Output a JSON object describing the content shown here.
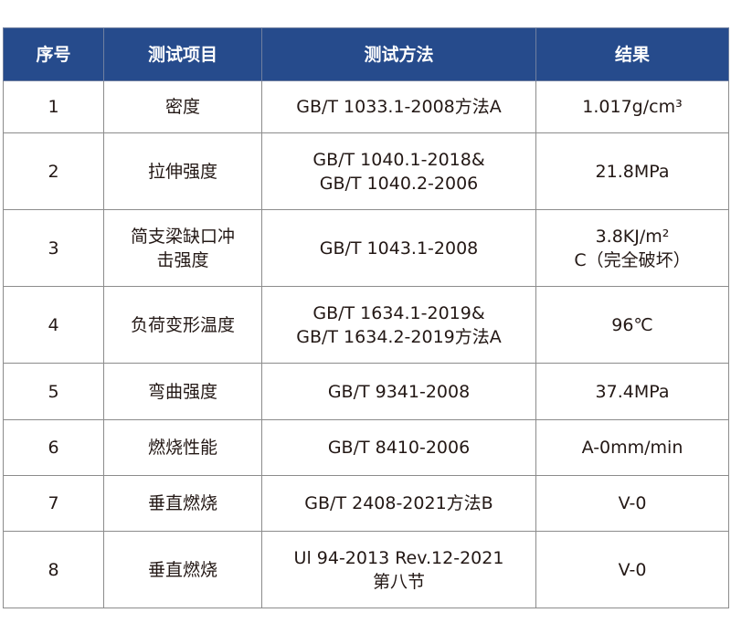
{
  "colors": {
    "header_bg": "#264b8c",
    "header_text": "#ffffff",
    "border": "#8c8c8c",
    "text": "#231815"
  },
  "headers": [
    "序号",
    "测试项目",
    "测试方法",
    "结果"
  ],
  "rows": [
    {
      "no": "1",
      "item": [
        "密度"
      ],
      "method": [
        "GB/T 1033.1-2008方法A"
      ],
      "result": [
        "1.017g/cm³"
      ]
    },
    {
      "no": "2",
      "item": [
        "拉伸强度"
      ],
      "method": [
        "GB/T 1040.1-2018&",
        "GB/T 1040.2-2006"
      ],
      "result": [
        "21.8MPa"
      ]
    },
    {
      "no": "3",
      "item": [
        "简支梁缺口冲",
        "击强度"
      ],
      "method": [
        "GB/T 1043.1-2008"
      ],
      "result": [
        "3.8KJ/m²",
        "C（完全破坏）"
      ]
    },
    {
      "no": "4",
      "item": [
        "负荷变形温度"
      ],
      "method": [
        "GB/T 1634.1-2019&",
        "GB/T 1634.2-2019方法A"
      ],
      "result": [
        "96℃"
      ]
    },
    {
      "no": "5",
      "item": [
        "弯曲强度"
      ],
      "method": [
        "GB/T 9341-2008"
      ],
      "result": [
        "37.4MPa"
      ]
    },
    {
      "no": "6",
      "item": [
        "燃烧性能"
      ],
      "method": [
        "GB/T 8410-2006"
      ],
      "result": [
        "A-0mm/min"
      ]
    },
    {
      "no": "7",
      "item": [
        "垂直燃烧"
      ],
      "method": [
        "GB/T 2408-2021方法B"
      ],
      "result": [
        "V-0"
      ]
    },
    {
      "no": "8",
      "item": [
        "垂直燃烧"
      ],
      "method": [
        "Ul 94-2013 Rev.12-2021",
        "第八节"
      ],
      "result": [
        "V-0"
      ]
    }
  ]
}
